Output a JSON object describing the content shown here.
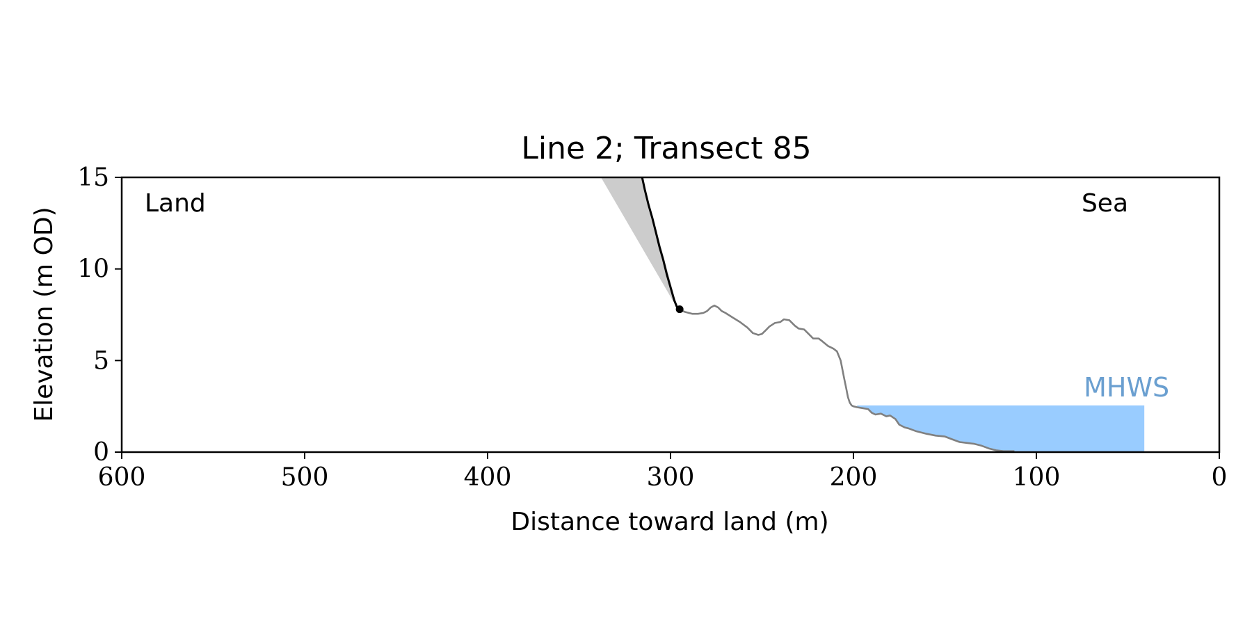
{
  "chart_data": {
    "type": "area",
    "title": "Line 2; Transect 85",
    "xlabel": "Distance toward land (m)",
    "ylabel": "Elevation (m OD)",
    "xlim": [
      600,
      0
    ],
    "ylim": [
      0,
      15
    ],
    "x_ticks": [
      600,
      500,
      400,
      300,
      200,
      100,
      0
    ],
    "y_ticks": [
      0,
      5,
      10,
      15
    ],
    "grid": false,
    "annotations": {
      "land": "Land",
      "sea": "Sea",
      "mhws": "MHWS"
    },
    "colors": {
      "cliff": "#000000",
      "profile": "#808080",
      "wedge": "#cccccc",
      "water": "#99ccff",
      "mhws_text": "#6a9fd0"
    },
    "series": [
      {
        "role": "cliff",
        "x": [
          315.5,
          314,
          312,
          310,
          308,
          306,
          304,
          302,
          300,
          298,
          296
        ],
        "y": [
          15,
          14.3,
          13.5,
          12.8,
          12.0,
          11.2,
          10.5,
          9.7,
          9.0,
          8.3,
          7.8
        ]
      },
      {
        "role": "ground-profile",
        "x": [
          296,
          292,
          288,
          285,
          282,
          280,
          278,
          276,
          274,
          272,
          270,
          266,
          262,
          258,
          255,
          252,
          250,
          248,
          246,
          243,
          240,
          238,
          235,
          232,
          230,
          227,
          225,
          222,
          219,
          217,
          214,
          211,
          209,
          207,
          205,
          204,
          203,
          202,
          201,
          200,
          198,
          195,
          192,
          190,
          188,
          185,
          182,
          180,
          177,
          175,
          172,
          170,
          166,
          160,
          155,
          150,
          146,
          142,
          138,
          134,
          130,
          126,
          122,
          118,
          115,
          112
        ],
        "y": [
          7.8,
          7.65,
          7.55,
          7.55,
          7.6,
          7.7,
          7.9,
          8.0,
          7.9,
          7.7,
          7.6,
          7.35,
          7.1,
          6.8,
          6.5,
          6.4,
          6.45,
          6.65,
          6.85,
          7.05,
          7.1,
          7.25,
          7.2,
          6.9,
          6.75,
          6.7,
          6.5,
          6.2,
          6.2,
          6.05,
          5.8,
          5.65,
          5.5,
          5.0,
          4.0,
          3.5,
          3.0,
          2.7,
          2.55,
          2.5,
          2.45,
          2.4,
          2.35,
          2.15,
          2.05,
          2.1,
          1.95,
          2.0,
          1.8,
          1.5,
          1.35,
          1.3,
          1.15,
          1.0,
          0.9,
          0.85,
          0.7,
          0.55,
          0.5,
          0.45,
          0.35,
          0.2,
          0.1,
          0.05,
          0.05,
          0.05
        ]
      }
    ],
    "cliff_top_wedge": {
      "x": [
        338,
        315.5,
        296
      ],
      "y": [
        15,
        15,
        7.8
      ]
    },
    "cliff_toe_point": {
      "x": 295,
      "y": 7.8
    },
    "mhws": {
      "level": 2.55,
      "x_start": 198,
      "x_end": 41
    }
  }
}
